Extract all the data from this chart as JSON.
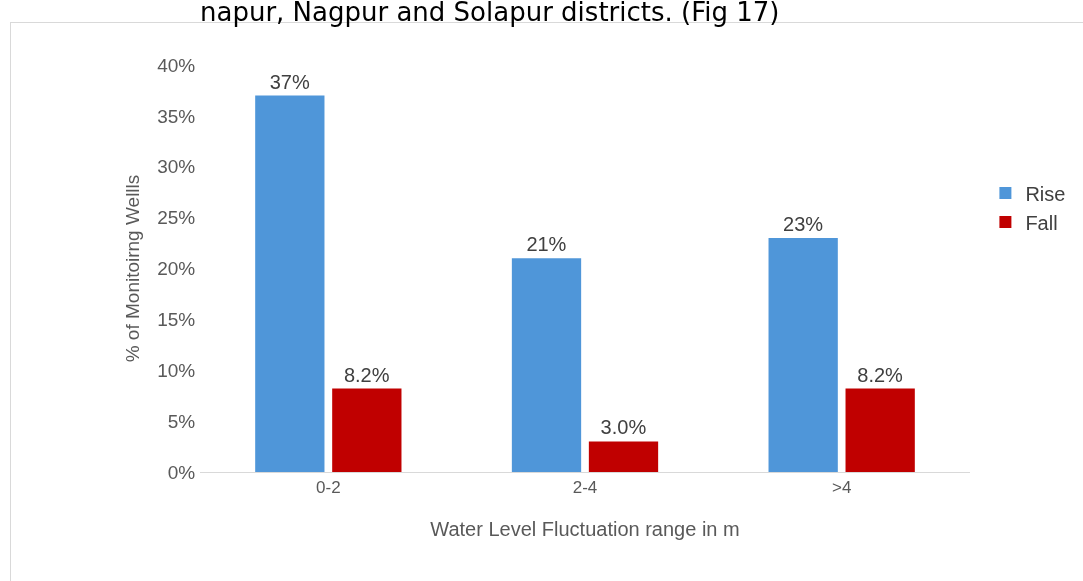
{
  "chart_data": {
    "type": "bar",
    "title": "napur, Nagpur and Solapur districts. (Fig 17)",
    "xlabel": "Water Level Fluctuation range in m",
    "ylabel": "% of Monitoirng Wellls",
    "categories": [
      "0-2",
      "2-4",
      ">4"
    ],
    "series": [
      {
        "name": "Rise",
        "color": "#4f96d9",
        "values": [
          37,
          21,
          23
        ],
        "value_labels": [
          "37%",
          "21%",
          "23%"
        ]
      },
      {
        "name": "Fall",
        "color": "#c00000",
        "values": [
          8.2,
          3.0,
          8.2
        ],
        "value_labels": [
          "8.2%",
          "3.0%",
          "8.2%"
        ]
      }
    ],
    "ylim": [
      0,
      40
    ],
    "yticks": [
      {
        "value": 0,
        "label": "0%"
      },
      {
        "value": 5,
        "label": "5%"
      },
      {
        "value": 10,
        "label": "10%"
      },
      {
        "value": 15,
        "label": "15%"
      },
      {
        "value": 20,
        "label": "20%"
      },
      {
        "value": 25,
        "label": "25%"
      },
      {
        "value": 30,
        "label": "30%"
      },
      {
        "value": 35,
        "label": "35%"
      },
      {
        "value": 40,
        "label": "40%"
      }
    ],
    "grid": false,
    "legend": "right"
  }
}
